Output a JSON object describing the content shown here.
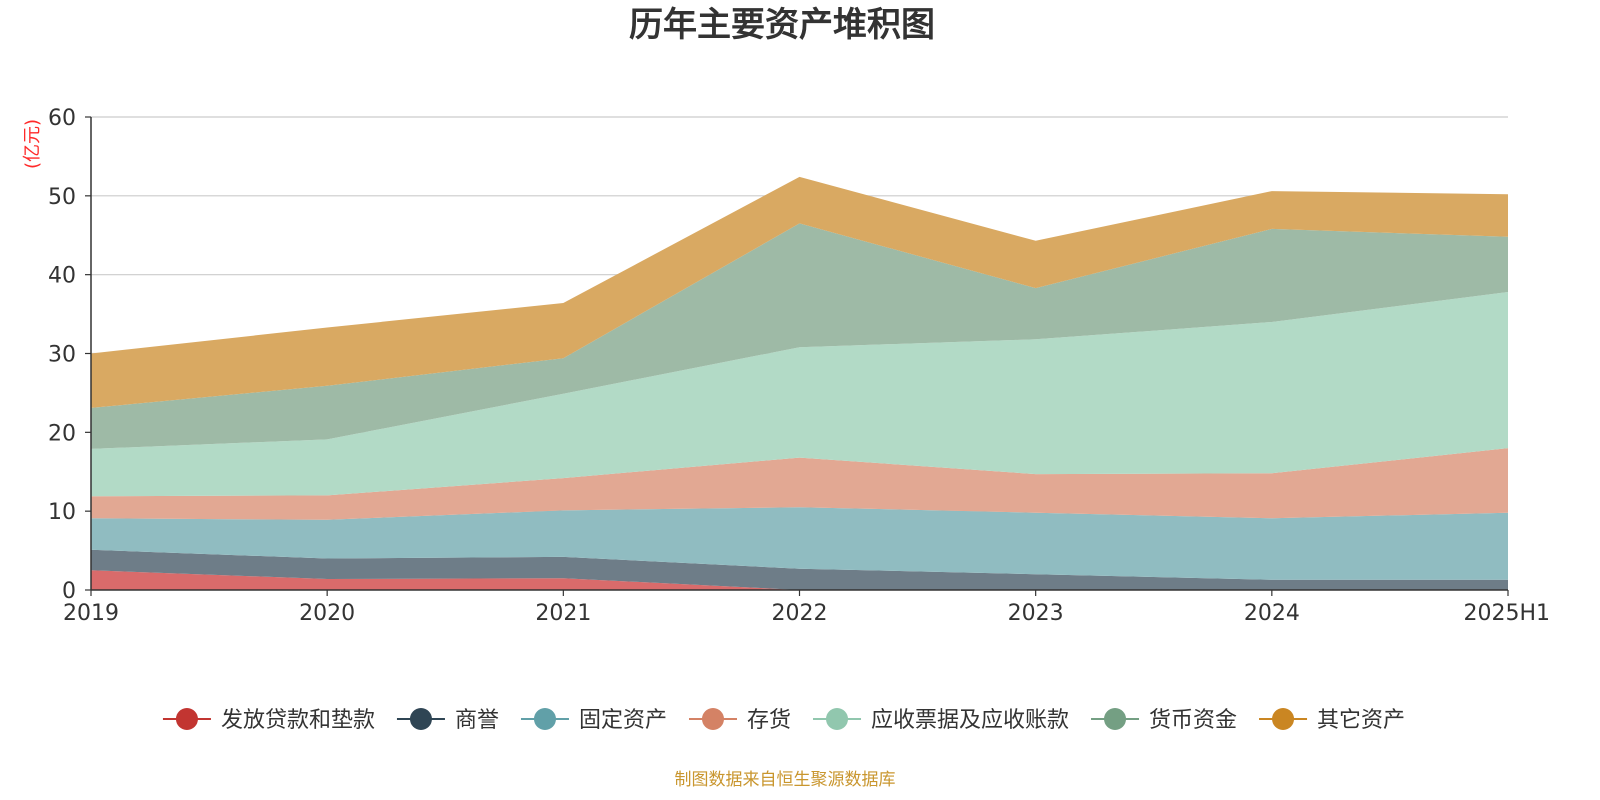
{
  "chart_data": {
    "type": "area",
    "stacked": true,
    "title": "历年主要资产堆积图",
    "ylabel": "(亿元)",
    "xlabel": "",
    "categories": [
      "2019",
      "2020",
      "2021",
      "2022",
      "2023",
      "2024",
      "2025H1"
    ],
    "ylim": [
      0,
      60
    ],
    "yticks": [
      0,
      10,
      20,
      30,
      40,
      50,
      60
    ],
    "grid": true,
    "legend_position": "bottom",
    "series": [
      {
        "name": "发放贷款和垫款",
        "color": "#c23531",
        "fill": "#d96b6b",
        "values": [
          2.5,
          1.4,
          1.5,
          0.0,
          0.0,
          0.0,
          0.0
        ]
      },
      {
        "name": "商誉",
        "color": "#2f4554",
        "fill": "#6e7d88",
        "values": [
          2.6,
          2.6,
          2.7,
          2.7,
          2.0,
          1.3,
          1.3
        ]
      },
      {
        "name": "固定资产",
        "color": "#61a0a8",
        "fill": "#90bcc1",
        "values": [
          4.0,
          4.9,
          5.9,
          7.8,
          7.8,
          7.8,
          8.5
        ]
      },
      {
        "name": "存货",
        "color": "#d48265",
        "fill": "#e2a893",
        "values": [
          2.8,
          3.1,
          4.1,
          6.3,
          4.9,
          5.7,
          8.2
        ]
      },
      {
        "name": "应收票据及应收账款",
        "color": "#91c7ae",
        "fill": "#b2dac6",
        "values": [
          6.0,
          7.1,
          10.7,
          14.0,
          17.1,
          19.2,
          19.8
        ]
      },
      {
        "name": "货币资金",
        "color": "#749f83",
        "fill": "#9ebaa6",
        "values": [
          5.2,
          6.8,
          4.5,
          15.7,
          6.5,
          11.8,
          7.0
        ]
      },
      {
        "name": "其它资产",
        "color": "#ca8622",
        "fill": "#d9a962",
        "values": [
          6.9,
          7.4,
          7.0,
          5.9,
          6.0,
          4.8,
          5.4
        ]
      }
    ],
    "source_note": "制图数据来自恒生聚源数据库"
  }
}
